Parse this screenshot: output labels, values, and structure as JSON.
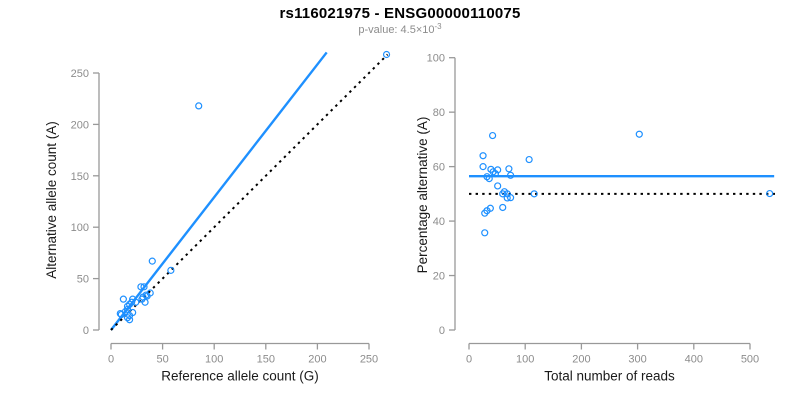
{
  "header": {
    "title": "rs116021975 - ENSG00000110075",
    "p_value_label": "p-value: 4.5×10",
    "p_value_exponent": "-3"
  },
  "colors": {
    "accent_blue": "#1E90FF",
    "axis_gray": "#999999",
    "tick_text_gray": "#8C8C8C",
    "axis_title_color": "#1A1A1A",
    "title_color": "#000000",
    "background": "#FFFFFF"
  },
  "chart_data": [
    {
      "type": "scatter",
      "name": "ref-alt-scatter",
      "title": "",
      "xlabel": "Reference allele count (G)",
      "ylabel": "Alternative allele count (A)",
      "xticks": [
        0,
        50,
        100,
        150,
        200,
        250
      ],
      "yticks": [
        0,
        50,
        100,
        150,
        200,
        250
      ],
      "xlim": [
        0,
        270
      ],
      "ylim": [
        0,
        272
      ],
      "grid": false,
      "legend": "none",
      "marker": "open-circle",
      "points": [
        [
          267,
          268
        ],
        [
          85,
          218
        ],
        [
          40,
          67
        ],
        [
          58,
          58
        ],
        [
          29,
          42
        ],
        [
          32,
          42
        ],
        [
          12,
          30
        ],
        [
          21,
          30
        ],
        [
          18,
          25
        ],
        [
          20,
          27
        ],
        [
          16,
          23
        ],
        [
          24,
          27
        ],
        [
          30,
          30
        ],
        [
          31,
          32
        ],
        [
          34,
          34
        ],
        [
          35,
          33
        ],
        [
          38,
          36
        ],
        [
          33,
          27
        ],
        [
          16,
          20
        ],
        [
          14,
          18
        ],
        [
          9,
          16
        ],
        [
          10,
          15
        ],
        [
          21,
          17
        ],
        [
          18,
          14
        ],
        [
          16,
          12
        ],
        [
          18,
          10
        ]
      ],
      "lines": [
        {
          "name": "fit-line",
          "x1": 0,
          "y1": 0,
          "x2": 209,
          "y2": 270,
          "color": "#1E90FF",
          "dash": false
        },
        {
          "name": "identity-line",
          "x1": 0,
          "y1": 0,
          "x2": 268,
          "y2": 268,
          "color": "#000000",
          "dash": true
        }
      ]
    },
    {
      "type": "scatter",
      "name": "percentage-reads-scatter",
      "title": "",
      "xlabel": "Total number of reads",
      "ylabel": "Percentage alternative (A)",
      "xticks": [
        0,
        100,
        200,
        300,
        400,
        500
      ],
      "yticks": [
        0,
        20,
        40,
        60,
        80,
        100
      ],
      "xlim": [
        0,
        545
      ],
      "ylim": [
        0,
        100
      ],
      "grid": false,
      "legend": "none",
      "marker": "open-circle",
      "points": [
        [
          535,
          50.1
        ],
        [
          303,
          71.9
        ],
        [
          107,
          62.6
        ],
        [
          116,
          50.0
        ],
        [
          71,
          59.2
        ],
        [
          74,
          56.8
        ],
        [
          42,
          71.4
        ],
        [
          51,
          58.8
        ],
        [
          43,
          58.1
        ],
        [
          47,
          57.4
        ],
        [
          39,
          59.0
        ],
        [
          51,
          52.9
        ],
        [
          60,
          50.0
        ],
        [
          63,
          50.8
        ],
        [
          68,
          50.0
        ],
        [
          68,
          48.5
        ],
        [
          74,
          48.6
        ],
        [
          60,
          45.0
        ],
        [
          36,
          55.6
        ],
        [
          32,
          56.3
        ],
        [
          25,
          64.0
        ],
        [
          25,
          60.0
        ],
        [
          38,
          44.7
        ],
        [
          32,
          43.8
        ],
        [
          28,
          42.9
        ],
        [
          28,
          35.7
        ]
      ],
      "lines": [
        {
          "name": "mean-line",
          "x1": 0,
          "y1": 56.5,
          "x2": 543,
          "y2": 56.5,
          "color": "#1E90FF",
          "dash": false
        },
        {
          "name": "null-line",
          "x1": 0,
          "y1": 50,
          "x2": 545,
          "y2": 50,
          "color": "#000000",
          "dash": true
        }
      ]
    }
  ]
}
